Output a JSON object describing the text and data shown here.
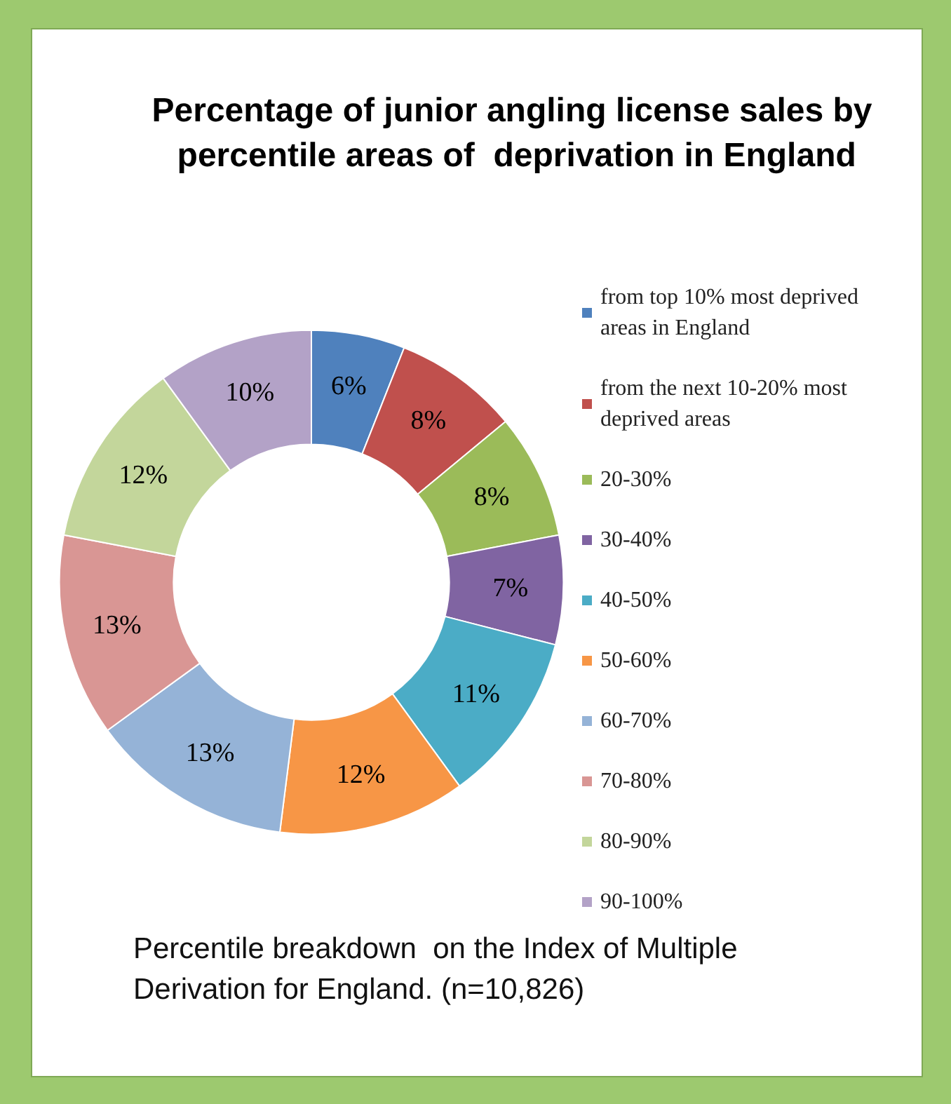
{
  "chart_data": {
    "type": "donut",
    "title": "Percentage of junior angling license sales by percentile areas of  deprivation in England",
    "categories": [
      "from top 10% most deprived areas in England",
      "from the next 10-20% most deprived areas",
      "20-30%",
      "30-40%",
      "40-50%",
      "50-60%",
      "60-70%",
      "70-80%",
      "80-90%",
      "90-100%"
    ],
    "values": [
      6,
      8,
      8,
      7,
      11,
      12,
      13,
      13,
      12,
      10
    ],
    "value_labels": [
      "6%",
      "8%",
      "8%",
      "7%",
      "11%",
      "12%",
      "13%",
      "13%",
      "12%",
      "10%"
    ],
    "colors": [
      "#4f81bd",
      "#c0504d",
      "#9bbb59",
      "#8064a2",
      "#4bacc6",
      "#f79646",
      "#95b3d7",
      "#d99694",
      "#c3d69b",
      "#b3a2c7"
    ],
    "legend": "right",
    "annotations": [
      "Percentile breakdown  on the Index of Multiple Derivation for England. (n=10,826)"
    ]
  }
}
